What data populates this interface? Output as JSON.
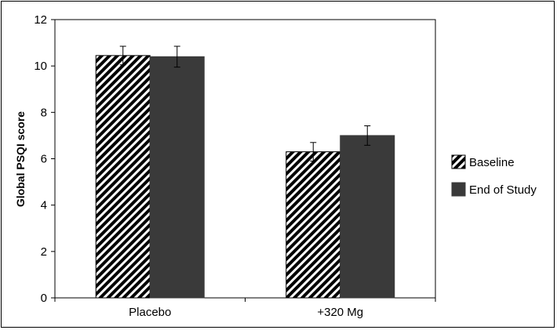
{
  "chart_data": {
    "type": "bar",
    "categories": [
      "Placebo",
      "+320 Mg"
    ],
    "series": [
      {
        "name": "Baseline",
        "values": [
          10.45,
          6.3
        ],
        "errors": [
          0.4,
          0.4
        ],
        "fill": "hatch",
        "color": "#000000"
      },
      {
        "name": "End of Study",
        "values": [
          10.4,
          7.0
        ],
        "errors": [
          0.45,
          0.42
        ],
        "fill": "solid",
        "color": "#3a3a3a"
      }
    ],
    "ylabel": "Global PSQI score",
    "xlabel": "",
    "ylim": [
      0,
      12
    ],
    "yticks": [
      0,
      2,
      4,
      6,
      8,
      10,
      12
    ],
    "legend": "right",
    "grid": false
  }
}
